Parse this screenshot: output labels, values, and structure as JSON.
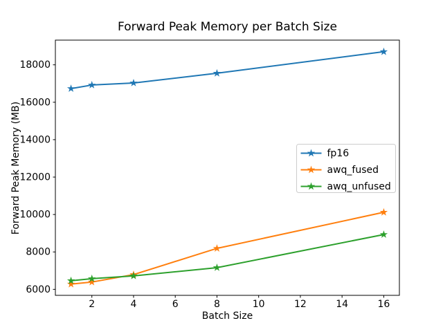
{
  "figure": {
    "background": "#ffffff",
    "text_color": "#000000"
  },
  "chart_data": {
    "type": "line",
    "title": "Forward Peak Memory per Batch Size",
    "xlabel": "Batch Size",
    "ylabel": "Forward Peak Memory (MB)",
    "x": [
      1,
      2,
      4,
      8,
      16
    ],
    "series": [
      {
        "name": "fp16",
        "color": "#1f77b4",
        "values": [
          16730,
          16920,
          17030,
          17550,
          18700
        ]
      },
      {
        "name": "awq_fused",
        "color": "#ff7f0e",
        "values": [
          6280,
          6390,
          6790,
          8190,
          10120
        ]
      },
      {
        "name": "awq_unfused",
        "color": "#2ca02c",
        "values": [
          6460,
          6570,
          6720,
          7160,
          8930
        ]
      }
    ],
    "marker": "star",
    "xticks": [
      2,
      4,
      6,
      8,
      10,
      12,
      14,
      16
    ],
    "yticks": [
      6000,
      8000,
      10000,
      12000,
      14000,
      16000,
      18000
    ],
    "xlim": [
      0.25,
      16.75
    ],
    "ylim": [
      5680,
      19320
    ],
    "grid": false,
    "legend": {
      "position": "center right",
      "entries": [
        "fp16",
        "awq_fused",
        "awq_unfused"
      ]
    },
    "axis_color": "#000000",
    "text_color": "#000000",
    "legend_border_color": "#cccccc",
    "legend_background": "#ffffff"
  }
}
